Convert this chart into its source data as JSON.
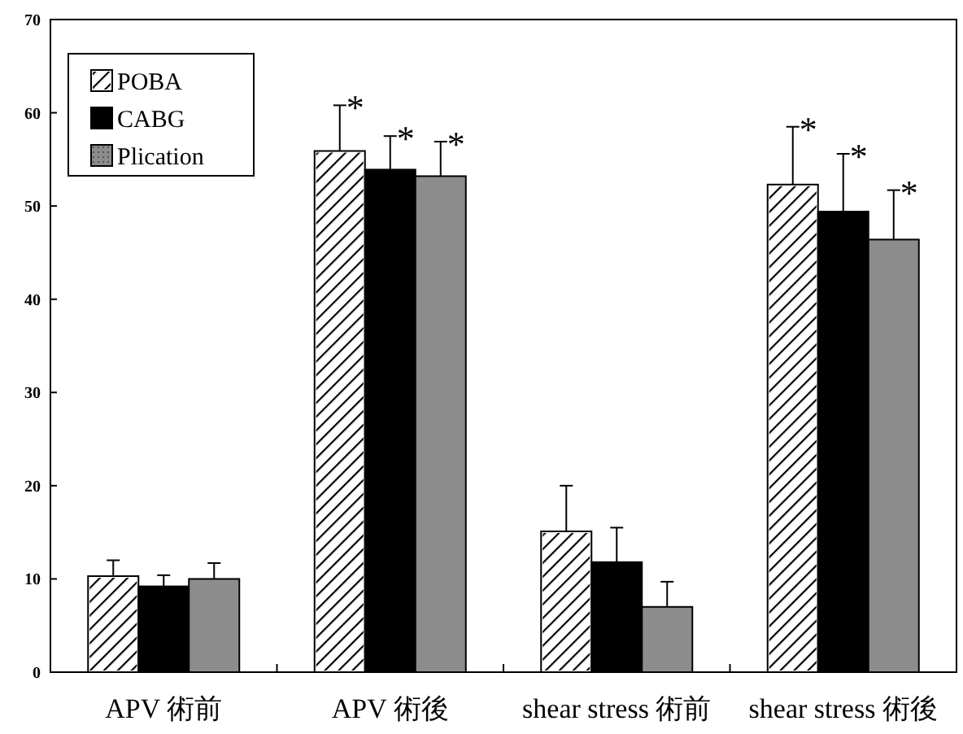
{
  "chart_data": {
    "type": "bar",
    "categories": [
      "APV 術前",
      "APV 術後",
      "shear stress 術前",
      "shear stress 術後"
    ],
    "series": [
      {
        "name": "POBA",
        "color": "#ffffff",
        "values": [
          10.3,
          55.9,
          15.1,
          52.3
        ],
        "errors": [
          [
            10.3,
            12.0
          ],
          [
            55.9,
            60.8
          ],
          [
            15.1,
            20.0
          ],
          [
            52.3,
            58.5
          ]
        ]
      },
      {
        "name": "CABG",
        "color": "#000000",
        "values": [
          9.2,
          53.9,
          11.8,
          49.4
        ],
        "errors": [
          [
            9.2,
            10.4
          ],
          [
            53.9,
            57.5
          ],
          [
            11.8,
            15.5
          ],
          [
            49.4,
            55.6
          ]
        ]
      },
      {
        "name": "Plication",
        "color": "#8c8c8c",
        "values": [
          10.0,
          53.2,
          7.0,
          46.4
        ],
        "errors": [
          [
            10.0,
            11.7
          ],
          [
            53.2,
            56.9
          ],
          [
            7.0,
            9.7
          ],
          [
            46.4,
            51.7
          ]
        ]
      }
    ],
    "ylim": [
      0,
      70
    ],
    "yticks": [
      0,
      10,
      20,
      30,
      40,
      50,
      60,
      70
    ],
    "legend": "top left",
    "grid": false,
    "annotations": [
      "*",
      "*",
      "*",
      "*",
      "*",
      "*"
    ]
  }
}
